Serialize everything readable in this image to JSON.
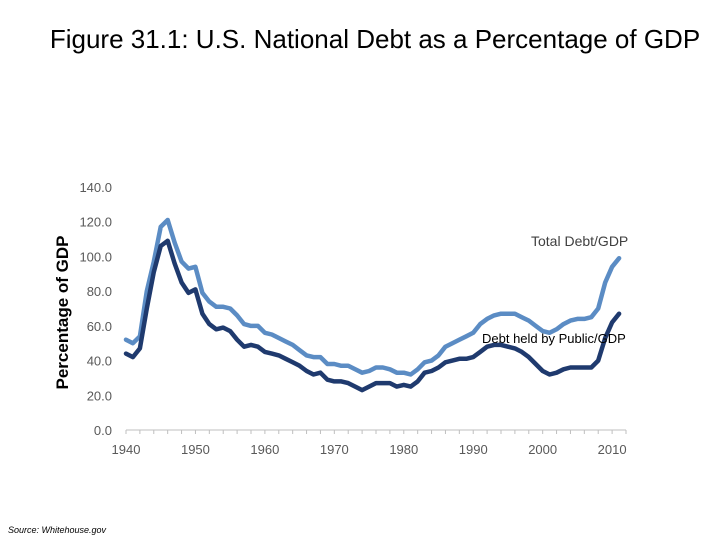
{
  "slide": {
    "title": "Figure 31.1: U.S. National Debt as a Percentage of GDP",
    "source": "Source: Whitehouse.gov"
  },
  "chart_data": {
    "type": "line",
    "title": "Figure 31.1: U.S. National Debt as a Percentage of GDP",
    "xlabel": "",
    "ylabel": "Percentage of GDP",
    "xlim": [
      1940,
      2012
    ],
    "ylim": [
      0,
      140
    ],
    "yticks": [
      "0.0",
      "20.0",
      "40.0",
      "60.0",
      "80.0",
      "100.0",
      "120.0",
      "140.0"
    ],
    "xticks": [
      "1940",
      "1950",
      "1960",
      "1970",
      "1980",
      "1990",
      "2000",
      "2010"
    ],
    "grid": false,
    "series": [
      {
        "name": "Total Debt/GDP",
        "color": "#5b8cc4",
        "x": [
          1940,
          1941,
          1942,
          1943,
          1944,
          1945,
          1946,
          1947,
          1948,
          1949,
          1950,
          1951,
          1952,
          1953,
          1954,
          1955,
          1956,
          1957,
          1958,
          1959,
          1960,
          1961,
          1962,
          1963,
          1964,
          1965,
          1966,
          1967,
          1968,
          1969,
          1970,
          1971,
          1972,
          1973,
          1974,
          1975,
          1976,
          1977,
          1978,
          1979,
          1980,
          1981,
          1982,
          1983,
          1984,
          1985,
          1986,
          1987,
          1988,
          1989,
          1990,
          1991,
          1992,
          1993,
          1994,
          1995,
          1996,
          1997,
          1998,
          1999,
          2000,
          2001,
          2002,
          2003,
          2004,
          2005,
          2006,
          2007,
          2008,
          2009,
          2010,
          2011
        ],
        "values": [
          52,
          50,
          54,
          80,
          97,
          117,
          121,
          108,
          97,
          93,
          94,
          79,
          74,
          71,
          71,
          70,
          66,
          61,
          60,
          60,
          56,
          55,
          53,
          51,
          49,
          46,
          43,
          42,
          42,
          38,
          38,
          37,
          37,
          35,
          33,
          34,
          36,
          36,
          35,
          33,
          33,
          32,
          35,
          39,
          40,
          43,
          48,
          50,
          52,
          54,
          56,
          61,
          64,
          66,
          67,
          67,
          67,
          65,
          63,
          60,
          57,
          56,
          58,
          61,
          63,
          64,
          64,
          65,
          70,
          85,
          94,
          99
        ]
      },
      {
        "name": "Debt held by Public/GDP",
        "color": "#1f3a6e",
        "x": [
          1940,
          1941,
          1942,
          1943,
          1944,
          1945,
          1946,
          1947,
          1948,
          1949,
          1950,
          1951,
          1952,
          1953,
          1954,
          1955,
          1956,
          1957,
          1958,
          1959,
          1960,
          1961,
          1962,
          1963,
          1964,
          1965,
          1966,
          1967,
          1968,
          1969,
          1970,
          1971,
          1972,
          1973,
          1974,
          1975,
          1976,
          1977,
          1978,
          1979,
          1980,
          1981,
          1982,
          1983,
          1984,
          1985,
          1986,
          1987,
          1988,
          1989,
          1990,
          1991,
          1992,
          1993,
          1994,
          1995,
          1996,
          1997,
          1998,
          1999,
          2000,
          2001,
          2002,
          2003,
          2004,
          2005,
          2006,
          2007,
          2008,
          2009,
          2010,
          2011
        ],
        "values": [
          44,
          42,
          47,
          70,
          91,
          106,
          109,
          96,
          85,
          79,
          81,
          67,
          61,
          58,
          59,
          57,
          52,
          48,
          49,
          48,
          45,
          44,
          43,
          41,
          39,
          37,
          34,
          32,
          33,
          29,
          28,
          28,
          27,
          25,
          23,
          25,
          27,
          27,
          27,
          25,
          26,
          25,
          28,
          33,
          34,
          36,
          39,
          40,
          41,
          41,
          42,
          45,
          48,
          49,
          49,
          48,
          47,
          45,
          42,
          38,
          34,
          32,
          33,
          35,
          36,
          36,
          36,
          36,
          40,
          53,
          62,
          67
        ]
      }
    ],
    "annotations": [
      {
        "text": "Total Debt/GDP",
        "series": "Total Debt/GDP"
      },
      {
        "text": "Debt held by Public/GDP",
        "series": "Debt held by Public/GDP"
      }
    ]
  }
}
